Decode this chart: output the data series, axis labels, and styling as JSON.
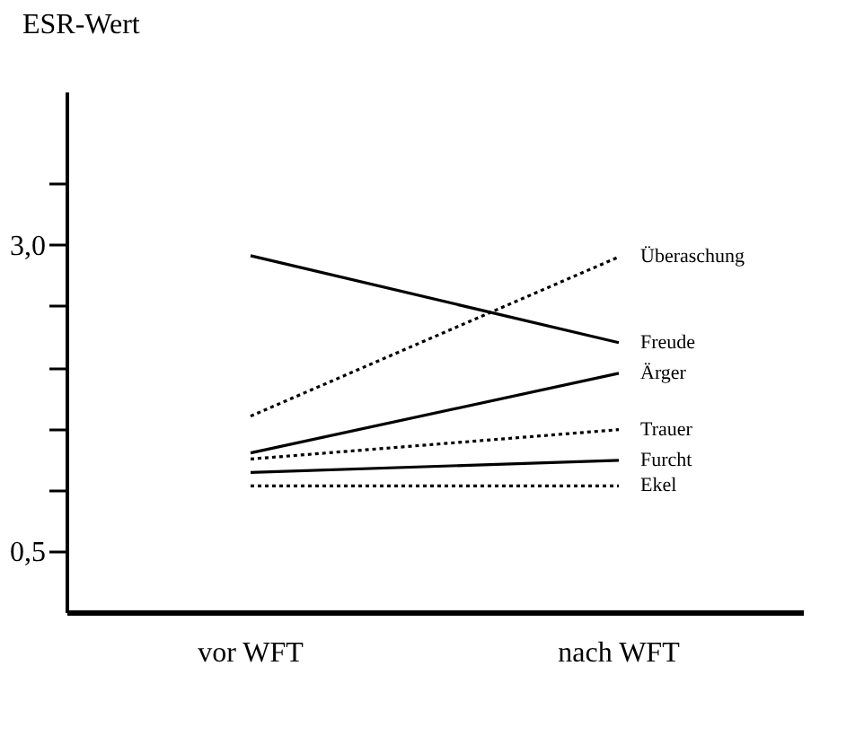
{
  "chart_data": {
    "type": "line",
    "ylabel": "ESR-Wert",
    "categories": [
      "vor WFT",
      "nach WFT"
    ],
    "series": [
      {
        "name": "Freude",
        "color": "#000000",
        "line_style": "solid",
        "values": [
          2.91,
          2.2
        ]
      },
      {
        "name": "Überaschung",
        "color": "#000000",
        "line_style": "dotted",
        "values": [
          1.6,
          2.9
        ]
      },
      {
        "name": "Ärger",
        "color": "#000000",
        "line_style": "solid",
        "values": [
          1.3,
          1.95
        ]
      },
      {
        "name": "Trauer",
        "color": "#000000",
        "line_style": "dotted",
        "values": [
          1.25,
          1.49
        ]
      },
      {
        "name": "Furcht",
        "color": "#000000",
        "line_style": "solid",
        "values": [
          1.14,
          1.24
        ]
      },
      {
        "name": "Ekel",
        "color": "#000000",
        "line_style": "dotted",
        "values": [
          1.03,
          1.03
        ]
      }
    ],
    "ylim": [
      0,
      4.25
    ],
    "yticks": [
      {
        "value": 0.5,
        "label": "0,5"
      },
      {
        "value": 1.0,
        "label": null
      },
      {
        "value": 1.5,
        "label": null
      },
      {
        "value": 2.0,
        "label": null
      },
      {
        "value": 2.5,
        "label": null
      },
      {
        "value": 3.0,
        "label": "3,0"
      },
      {
        "value": 3.5,
        "label": null
      }
    ],
    "grid": false,
    "legend": false,
    "marker": "none"
  }
}
